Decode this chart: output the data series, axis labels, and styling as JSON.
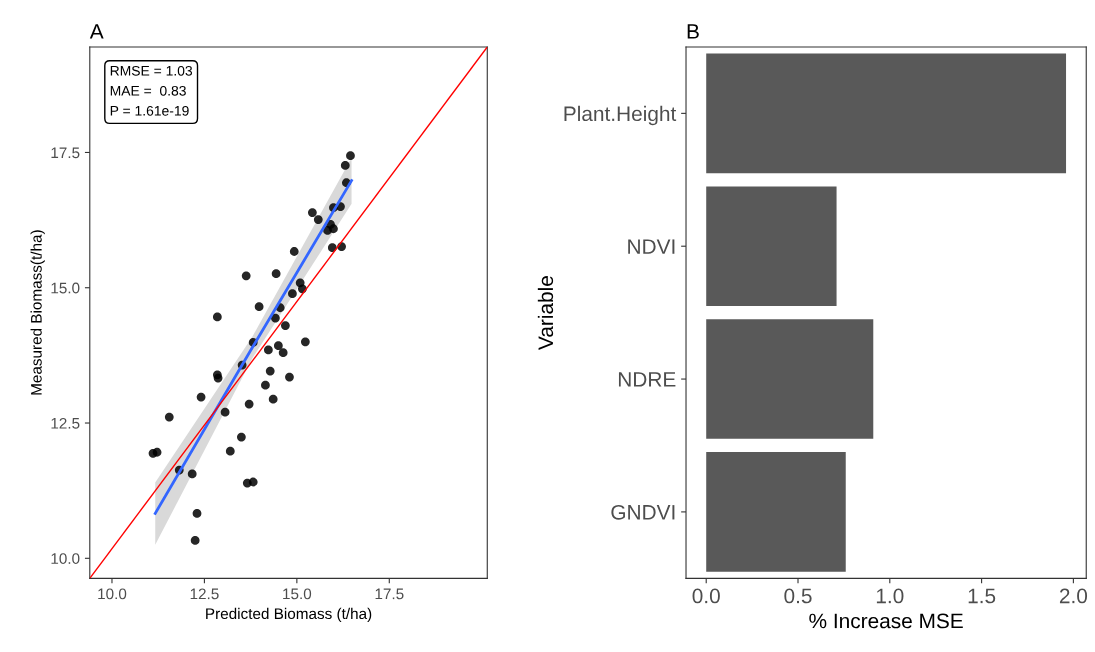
{
  "chart_data": [
    {
      "type": "scatter",
      "title": "A",
      "xlabel": "Predicted Biomass (t/ha)",
      "ylabel": "Measured Biomass(t/ha)",
      "xlim": [
        9.4,
        20.15
      ],
      "ylim": [
        9.63,
        19.45
      ],
      "xticks": [
        {
          "value": 10,
          "label": "10.0"
        },
        12.5,
        {
          "value": 15,
          "label": "15.0"
        },
        17.5
      ],
      "yticks": [
        {
          "value": 10,
          "label": "10.0"
        },
        12.5,
        {
          "value": 15,
          "label": "15.0"
        },
        17.5
      ],
      "grid": false,
      "annotations": [
        "RMSE = 1.03",
        "MAE =  0.83",
        "P = 1.61e-19"
      ],
      "series": [
        {
          "type": "scatter",
          "color": "#000000",
          "marker": "circle",
          "x": [
            16.45,
            16.31,
            16.34,
            15.99,
            16.18,
            15.42,
            15.58,
            15.91,
            15.83,
            15.99,
            15.96,
            16.21,
            14.93,
            15.09,
            15.15,
            14.88,
            14.55,
            14.69,
            15.23,
            14.63,
            14.8,
            13.98,
            12.85,
            13.82,
            14.5,
            14.23,
            13.52,
            12.85,
            12.87,
            12.41,
            11.55,
            13.71,
            13.06,
            13.5,
            13.2,
            11.11,
            11.22,
            11.82,
            12.17,
            13.66,
            13.82,
            12.3,
            12.25,
            14.28,
            14.15,
            14.36,
            14.44,
            13.63,
            14.42
          ],
          "values": [
            17.44,
            17.26,
            16.94,
            16.48,
            16.5,
            16.39,
            16.26,
            16.17,
            16.06,
            16.09,
            15.74,
            15.76,
            15.67,
            15.09,
            14.98,
            14.89,
            14.63,
            14.3,
            14.0,
            13.8,
            13.35,
            14.65,
            14.46,
            13.99,
            13.93,
            13.85,
            13.57,
            13.39,
            13.33,
            12.98,
            12.61,
            12.85,
            12.7,
            12.24,
            11.98,
            11.94,
            11.96,
            11.63,
            11.56,
            11.39,
            11.41,
            10.83,
            10.33,
            13.46,
            13.2,
            12.94,
            15.26,
            15.22,
            14.44
          ]
        },
        {
          "type": "line",
          "color": "#3366ff",
          "x": [
            11.17,
            13.8,
            16.48
          ],
          "values": [
            10.83,
            13.9,
            16.98
          ],
          "lower": [
            10.25,
            13.7,
            16.55
          ],
          "upper": [
            11.4,
            14.1,
            17.4
          ]
        },
        {
          "type": "line",
          "color": "#ff0000",
          "x": [
            9.4,
            20.15
          ],
          "values": [
            9.63,
            19.45
          ]
        }
      ]
    },
    {
      "type": "bar",
      "orientation": "horizontal",
      "title": "B",
      "xlabel": "% Increase MSE",
      "ylabel": "Variable",
      "categories": [
        "Plant.Height",
        "NDVI",
        "NDRE",
        "GNDVI"
      ],
      "values": [
        1.96,
        0.71,
        0.91,
        0.76
      ],
      "color": "#595959",
      "xlim": [
        -0.11,
        2.07
      ],
      "xticks": [
        {
          "value": 0,
          "label": "0.0"
        },
        0.5,
        {
          "value": 1,
          "label": "1.0"
        },
        1.5,
        {
          "value": 2,
          "label": "2.0"
        }
      ],
      "grid": false
    }
  ]
}
